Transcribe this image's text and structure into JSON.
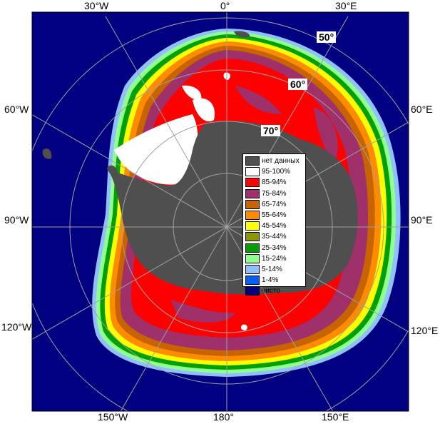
{
  "map": {
    "longitude_labels": {
      "top": [
        "30°W",
        "0°",
        "30°E"
      ],
      "left": [
        "60°W",
        "90°W",
        "120°W"
      ],
      "right": [
        "60°E",
        "90°E",
        "120°E"
      ],
      "bottom": [
        "150°W",
        "180°",
        "150°E"
      ]
    },
    "latitude_labels": [
      "50°",
      "60°",
      "70°"
    ],
    "colors": {
      "frame_border": "#000000",
      "outside_projection": "#ffffff",
      "open_water": "#000080",
      "land": "#4f4f4f",
      "no_data": "#4f4f4f",
      "graticule": "#a0a0a0"
    }
  },
  "legend": {
    "items": [
      {
        "label": "нет данных",
        "color": "#4f4f4f"
      },
      {
        "label": "95-100%",
        "color": "#ffffff"
      },
      {
        "label": "85-94%",
        "color": "#ff0000"
      },
      {
        "label": "75-84%",
        "color": "#a0306a"
      },
      {
        "label": "65-74%",
        "color": "#c86400"
      },
      {
        "label": "55-64%",
        "color": "#ff8c00"
      },
      {
        "label": "45-54%",
        "color": "#ffff00"
      },
      {
        "label": "35-44%",
        "color": "#8c9600"
      },
      {
        "label": "25-34%",
        "color": "#00a000"
      },
      {
        "label": "15-24%",
        "color": "#90ff90"
      },
      {
        "label": "5-14%",
        "color": "#90c0ff"
      },
      {
        "label": "1-4%",
        "color": "#0060ff"
      },
      {
        "label": "чисто",
        "color": "#000080"
      }
    ]
  }
}
